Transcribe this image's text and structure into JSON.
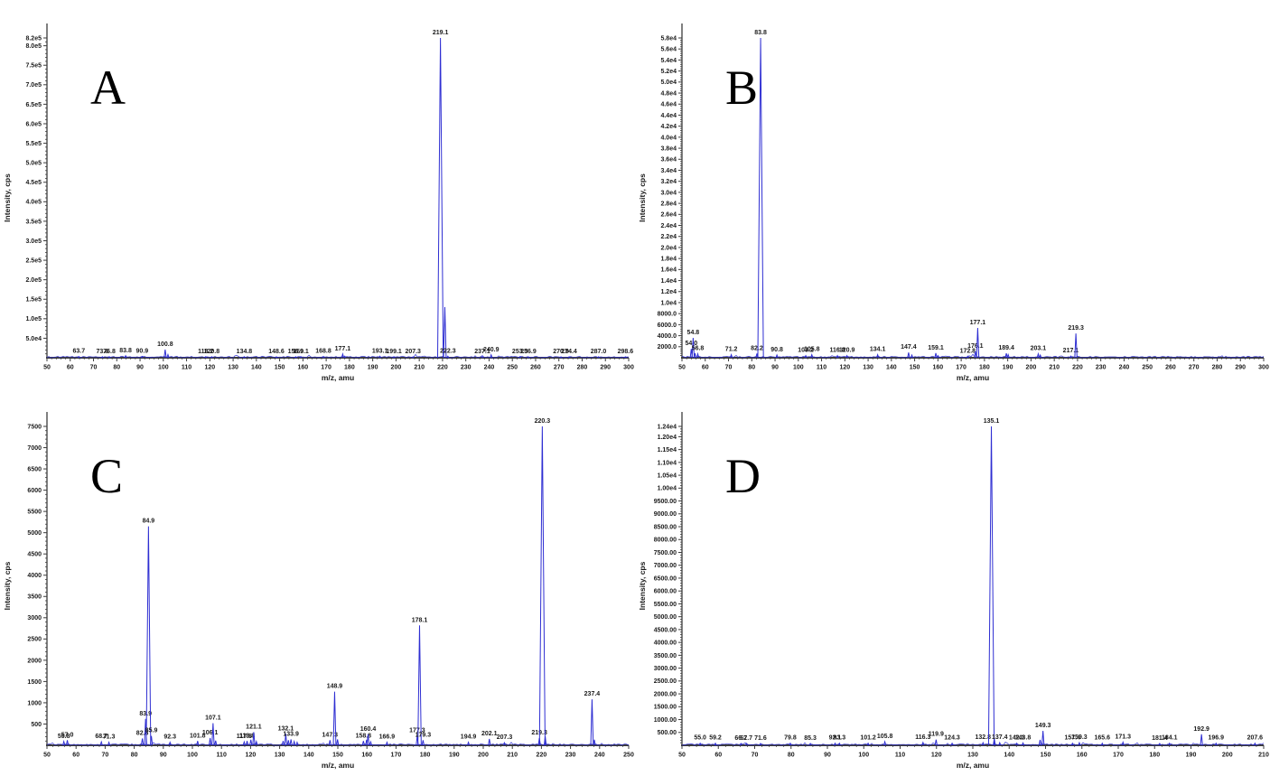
{
  "theme": {
    "background": "#ffffff",
    "peak_color": "#2e2ed2",
    "axis_color": "#3c3c3c",
    "tick_text_color": "#1a1a1a",
    "panel_letter_color": "#000000"
  },
  "chart_data": [
    {
      "type": "line",
      "kind": "mass-spectrum",
      "panel": "A",
      "xlabel": "m/z, amu",
      "ylabel": "Intensity, cps",
      "xlim": [
        50,
        300
      ],
      "xtick_step": 10,
      "ylim": [
        0,
        820000
      ],
      "yticks": [
        [
          50000,
          "5.0e4"
        ],
        [
          100000,
          "1.0e5"
        ],
        [
          150000,
          "1.5e5"
        ],
        [
          200000,
          "2.0e5"
        ],
        [
          250000,
          "2.5e5"
        ],
        [
          300000,
          "3.0e5"
        ],
        [
          350000,
          "3.5e5"
        ],
        [
          400000,
          "4.0e5"
        ],
        [
          450000,
          "4.5e5"
        ],
        [
          500000,
          "5.0e5"
        ],
        [
          550000,
          "5.5e5"
        ],
        [
          600000,
          "6.0e5"
        ],
        [
          650000,
          "6.5e5"
        ],
        [
          700000,
          "7.0e5"
        ],
        [
          750000,
          "7.5e5"
        ],
        [
          800000,
          "8.0e5"
        ],
        [
          820000,
          "8.2e5"
        ]
      ],
      "peaks": [
        [
          63.7,
          3000,
          "63.7"
        ],
        [
          73.8,
          2600,
          "73.8"
        ],
        [
          76.8,
          2600,
          "76.8"
        ],
        [
          83.8,
          5200,
          "83.8"
        ],
        [
          90.9,
          3200,
          "90.9"
        ],
        [
          100.8,
          21000,
          "100.8"
        ],
        [
          102.0,
          8000,
          ""
        ],
        [
          118.2,
          2600,
          "118.2"
        ],
        [
          120.8,
          2600,
          "120.8"
        ],
        [
          134.8,
          2600,
          "134.8"
        ],
        [
          148.6,
          2600,
          "148.6"
        ],
        [
          156.9,
          2600,
          "156.9"
        ],
        [
          159.1,
          2800,
          "159.1"
        ],
        [
          168.8,
          3000,
          "168.8"
        ],
        [
          177.1,
          9500,
          "177.1"
        ],
        [
          178.0,
          4000,
          ""
        ],
        [
          193.1,
          4000,
          "193.1"
        ],
        [
          199.1,
          2400,
          "199.1"
        ],
        [
          207.3,
          2400,
          "207.3"
        ],
        [
          219.1,
          820000,
          "219.1"
        ],
        [
          221.0,
          130000,
          ""
        ],
        [
          222.3,
          4000,
          "222.3"
        ],
        [
          237.1,
          2400,
          "237.1"
        ],
        [
          240.9,
          7500,
          "240.9"
        ],
        [
          253.3,
          2400,
          "253.3"
        ],
        [
          256.9,
          2400,
          "256.9"
        ],
        [
          270.9,
          2400,
          "270.9"
        ],
        [
          274.4,
          2400,
          "274.4"
        ],
        [
          287.0,
          2400,
          "287.0"
        ],
        [
          298.6,
          2400,
          "298.6"
        ]
      ]
    },
    {
      "type": "line",
      "kind": "mass-spectrum",
      "panel": "B",
      "xlabel": "m/z, amu",
      "ylabel": "Intensity, cps",
      "xlim": [
        50,
        300
      ],
      "xtick_step": 10,
      "ylim": [
        0,
        58000
      ],
      "yticks": [
        [
          2000,
          "2000.0"
        ],
        [
          4000,
          "4000.0"
        ],
        [
          6000,
          "6000.0"
        ],
        [
          8000,
          "8000.0"
        ],
        [
          10000,
          "1.0e4"
        ],
        [
          12000,
          "1.2e4"
        ],
        [
          14000,
          "1.4e4"
        ],
        [
          16000,
          "1.6e4"
        ],
        [
          18000,
          "1.8e4"
        ],
        [
          20000,
          "2.0e4"
        ],
        [
          22000,
          "2.2e4"
        ],
        [
          24000,
          "2.4e4"
        ],
        [
          26000,
          "2.6e4"
        ],
        [
          28000,
          "2.8e4"
        ],
        [
          30000,
          "3.0e4"
        ],
        [
          32000,
          "3.2e4"
        ],
        [
          34000,
          "3.4e4"
        ],
        [
          36000,
          "3.6e4"
        ],
        [
          38000,
          "3.8e4"
        ],
        [
          40000,
          "4.0e4"
        ],
        [
          42000,
          "4.2e4"
        ],
        [
          44000,
          "4.4e4"
        ],
        [
          46000,
          "4.6e4"
        ],
        [
          48000,
          "4.8e4"
        ],
        [
          50000,
          "5.0e4"
        ],
        [
          52000,
          "5.2e4"
        ],
        [
          54000,
          "5.4e4"
        ],
        [
          56000,
          "5.6e4"
        ],
        [
          58000,
          "5.8e4"
        ]
      ],
      "peaks": [
        [
          54.0,
          1600,
          "54.0"
        ],
        [
          54.8,
          3600,
          "54.8"
        ],
        [
          55.6,
          800,
          ""
        ],
        [
          56.8,
          700,
          "56.8"
        ],
        [
          71.2,
          550,
          "71.2"
        ],
        [
          82.2,
          750,
          "82.2"
        ],
        [
          83.8,
          58000,
          "83.8"
        ],
        [
          90.8,
          500,
          "90.8"
        ],
        [
          103.2,
          380,
          "103.2"
        ],
        [
          105.8,
          550,
          "105.8"
        ],
        [
          116.8,
          380,
          "116.8"
        ],
        [
          120.9,
          380,
          "120.9"
        ],
        [
          134.1,
          550,
          "134.1"
        ],
        [
          147.4,
          950,
          "147.4"
        ],
        [
          148.8,
          480,
          ""
        ],
        [
          159.1,
          850,
          "159.1"
        ],
        [
          160.0,
          380,
          ""
        ],
        [
          172.8,
          280,
          "172.8"
        ],
        [
          176.1,
          1150,
          "176.1"
        ],
        [
          177.1,
          5400,
          "177.1"
        ],
        [
          189.4,
          800,
          "189.4"
        ],
        [
          190.2,
          560,
          ""
        ],
        [
          203.1,
          700,
          "203.1"
        ],
        [
          204.0,
          480,
          ""
        ],
        [
          217.1,
          300,
          "217.1"
        ],
        [
          219.3,
          4400,
          "219.3"
        ]
      ]
    },
    {
      "type": "line",
      "kind": "mass-spectrum",
      "panel": "C",
      "xlabel": "m/z, amu",
      "ylabel": "Intensity, cps",
      "xlim": [
        50,
        250
      ],
      "xtick_step": 10,
      "ylim": [
        0,
        7500
      ],
      "yticks": [
        [
          500,
          "500"
        ],
        [
          1000,
          "1000"
        ],
        [
          1500,
          "1500"
        ],
        [
          2000,
          "2000"
        ],
        [
          2500,
          "2500"
        ],
        [
          3000,
          "3000"
        ],
        [
          3500,
          "3500"
        ],
        [
          4000,
          "4000"
        ],
        [
          4500,
          "4500"
        ],
        [
          5000,
          "5000"
        ],
        [
          5500,
          "5500"
        ],
        [
          6000,
          "6000"
        ],
        [
          6500,
          "6500"
        ],
        [
          7000,
          "7000"
        ],
        [
          7500,
          "7500"
        ]
      ],
      "peaks": [
        [
          55.8,
          90,
          "55.8"
        ],
        [
          57.0,
          120,
          "57.0"
        ],
        [
          68.7,
          80,
          "68.7"
        ],
        [
          71.3,
          70,
          "71.3"
        ],
        [
          82.8,
          160,
          "82.8"
        ],
        [
          83.9,
          620,
          "83.9"
        ],
        [
          84.9,
          5150,
          "84.9"
        ],
        [
          85.9,
          220,
          "85.9"
        ],
        [
          92.3,
          70,
          "92.3"
        ],
        [
          101.8,
          100,
          "101.8"
        ],
        [
          106.1,
          170,
          "106.1"
        ],
        [
          107.1,
          520,
          "107.1"
        ],
        [
          108.0,
          110,
          ""
        ],
        [
          117.8,
          80,
          "117.8"
        ],
        [
          118.8,
          100,
          "118.8"
        ],
        [
          120.1,
          130,
          ""
        ],
        [
          121.1,
          310,
          "121.1"
        ],
        [
          122.0,
          90,
          ""
        ],
        [
          131.2,
          100,
          ""
        ],
        [
          132.1,
          270,
          "132.1"
        ],
        [
          133.0,
          120,
          ""
        ],
        [
          133.9,
          140,
          "133.9"
        ],
        [
          135.0,
          90,
          ""
        ],
        [
          136.0,
          70,
          ""
        ],
        [
          147.3,
          120,
          "147.3"
        ],
        [
          148.9,
          1260,
          "148.9"
        ],
        [
          149.9,
          140,
          ""
        ],
        [
          158.8,
          100,
          "158.8"
        ],
        [
          159.9,
          130,
          ""
        ],
        [
          160.4,
          260,
          "160.4"
        ],
        [
          161.3,
          80,
          ""
        ],
        [
          166.9,
          70,
          "166.9"
        ],
        [
          177.3,
          220,
          "177.3"
        ],
        [
          178.1,
          2820,
          "178.1"
        ],
        [
          179.3,
          120,
          "179.3"
        ],
        [
          194.9,
          70,
          "194.9"
        ],
        [
          202.1,
          150,
          "202.1"
        ],
        [
          207.3,
          60,
          "207.3"
        ],
        [
          219.3,
          170,
          "219.3"
        ],
        [
          220.3,
          7500,
          "220.3"
        ],
        [
          221.3,
          210,
          ""
        ],
        [
          237.4,
          1080,
          "237.4"
        ],
        [
          238.2,
          130,
          ""
        ]
      ]
    },
    {
      "type": "line",
      "kind": "mass-spectrum",
      "panel": "D",
      "xlabel": "m/z, amu",
      "ylabel": "Intensity, cps",
      "xlim": [
        50,
        210
      ],
      "xtick_step": 10,
      "ylim": [
        0,
        12400
      ],
      "yticks": [
        [
          500,
          "500.00"
        ],
        [
          1000,
          "1000.00"
        ],
        [
          1500,
          "1500.00"
        ],
        [
          2000,
          "2000.00"
        ],
        [
          2500,
          "2500.00"
        ],
        [
          3000,
          "3000.00"
        ],
        [
          3500,
          "3500.00"
        ],
        [
          4000,
          "4000.00"
        ],
        [
          4500,
          "4500.00"
        ],
        [
          5000,
          "5000.00"
        ],
        [
          5500,
          "5500.00"
        ],
        [
          6000,
          "6000.00"
        ],
        [
          6500,
          "6500.00"
        ],
        [
          7000,
          "7000.00"
        ],
        [
          7500,
          "7500.00"
        ],
        [
          8000,
          "8000.00"
        ],
        [
          8500,
          "8500.00"
        ],
        [
          9000,
          "9000.00"
        ],
        [
          9500,
          "9500.00"
        ],
        [
          10000,
          "1.00e4"
        ],
        [
          10500,
          "1.05e4"
        ],
        [
          11000,
          "1.10e4"
        ],
        [
          11500,
          "1.15e4"
        ],
        [
          12000,
          "1.20e4"
        ],
        [
          12400,
          "1.24e4"
        ]
      ],
      "peaks": [
        [
          55.0,
          80,
          "55.0"
        ],
        [
          59.2,
          80,
          "59.2"
        ],
        [
          66.2,
          70,
          "66.2"
        ],
        [
          67.7,
          70,
          "67.7"
        ],
        [
          71.6,
          70,
          "71.6"
        ],
        [
          79.8,
          80,
          "79.8"
        ],
        [
          85.3,
          70,
          "85.3"
        ],
        [
          92.1,
          80,
          "92.1"
        ],
        [
          93.3,
          80,
          "93.3"
        ],
        [
          101.2,
          80,
          "101.2"
        ],
        [
          105.8,
          140,
          "105.8"
        ],
        [
          116.3,
          110,
          "116.3"
        ],
        [
          119.9,
          220,
          "119.9"
        ],
        [
          124.3,
          80,
          "124.3"
        ],
        [
          132.8,
          100,
          "132.8"
        ],
        [
          135.1,
          12400,
          "135.1"
        ],
        [
          135.9,
          260,
          ""
        ],
        [
          137.4,
          100,
          "137.4"
        ],
        [
          142.1,
          80,
          "142.1"
        ],
        [
          143.8,
          90,
          "143.8"
        ],
        [
          148.5,
          210,
          ""
        ],
        [
          149.3,
          560,
          "149.3"
        ],
        [
          157.4,
          80,
          "157.4"
        ],
        [
          159.3,
          100,
          "159.3"
        ],
        [
          165.6,
          80,
          "165.6"
        ],
        [
          171.3,
          120,
          "171.3"
        ],
        [
          181.4,
          70,
          "181.4"
        ],
        [
          184.1,
          80,
          "184.1"
        ],
        [
          192.9,
          430,
          "192.9"
        ],
        [
          196.9,
          80,
          "196.9"
        ],
        [
          207.6,
          80,
          "207.6"
        ]
      ]
    }
  ]
}
